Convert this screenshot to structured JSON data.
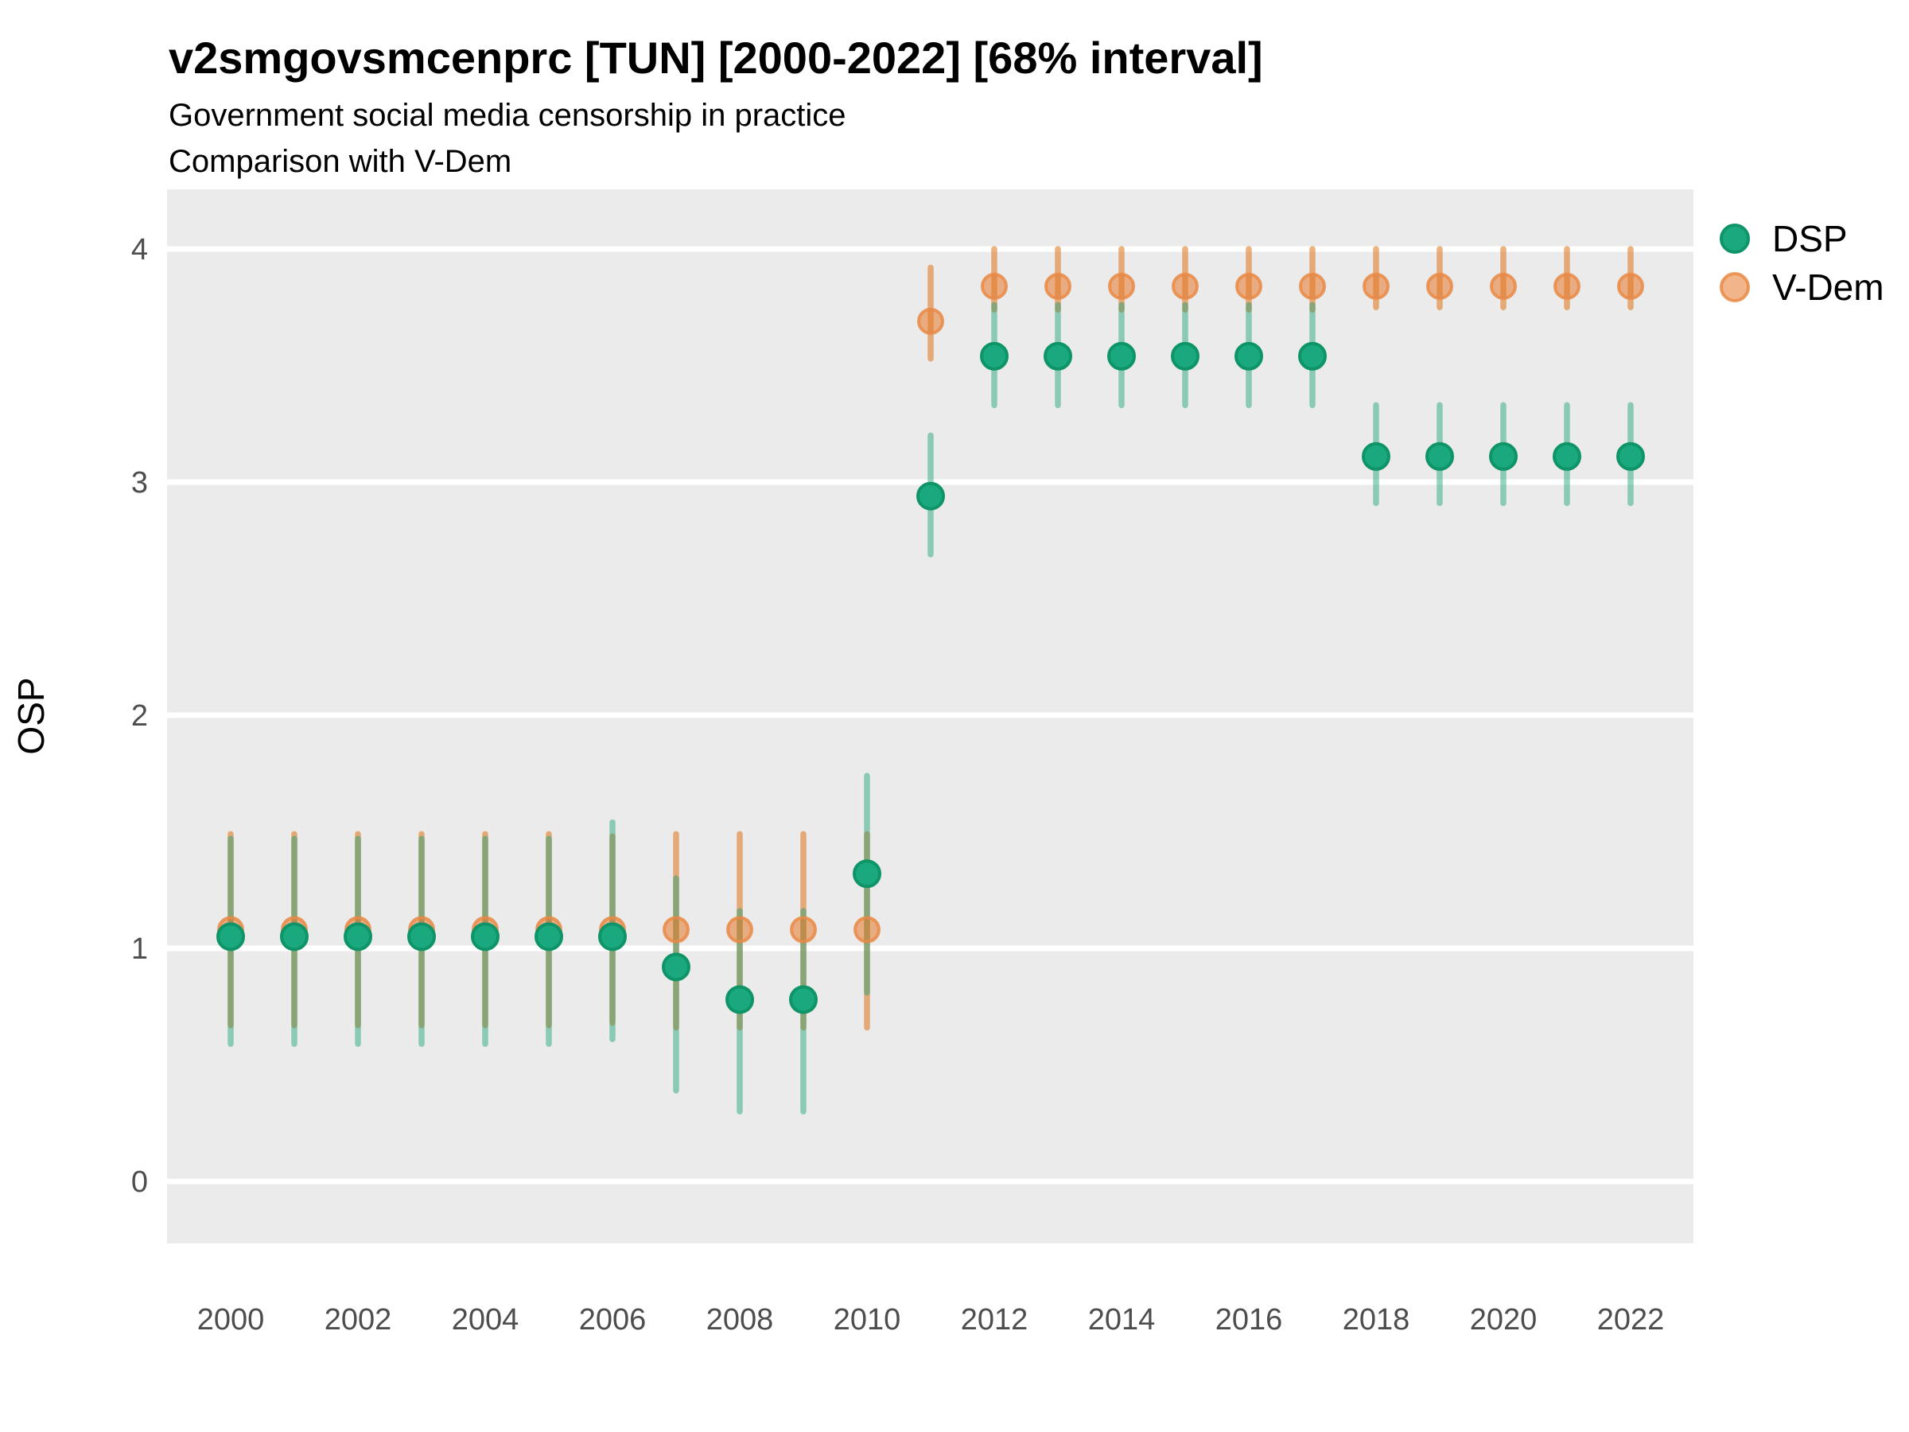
{
  "title": "v2smgovsmcenprc [TUN] [2000-2022] [68% interval]",
  "subtitle_line1": "Government social media censorship in practice",
  "subtitle_line2": "Comparison with V-Dem",
  "y_axis_label": "OSP",
  "legend": {
    "items": [
      {
        "label": "DSP",
        "swatch": "green-dot"
      },
      {
        "label": "V-Dem",
        "swatch": "orange-dot"
      }
    ]
  },
  "colors": {
    "panel_background": "#EBEBEB",
    "gridline": "#FFFFFF",
    "dsp_point_fill": "#1AA87F",
    "dsp_point_stroke": "#0F9468",
    "vdem_point_fill": "rgba(230,120,40,0.55)",
    "vdem_point_stroke": "rgba(233,138,70,0.85)",
    "dsp_interval": "rgba(23,160,120,0.45)",
    "vdem_interval": "rgba(224,115,24,0.55)",
    "tick_label": "#4d4d4d"
  },
  "chart_data": {
    "type": "scatter",
    "title": "v2smgovsmcenprc [TUN] [2000-2022] [68% interval]",
    "subtitle": [
      "Government social media censorship in practice",
      "Comparison with V-Dem"
    ],
    "xlabel": "",
    "ylabel": "OSP",
    "interval_note": "68% interval",
    "grid": "on",
    "legend_position": "right",
    "x_ticks": [
      2000,
      2002,
      2004,
      2006,
      2008,
      2010,
      2012,
      2014,
      2016,
      2018,
      2020,
      2022
    ],
    "y_ticks": [
      0,
      1,
      2,
      3,
      4
    ],
    "ylim": [
      -0.27,
      4.26
    ],
    "xlim": [
      1999,
      2023
    ],
    "series": [
      {
        "name": "DSP",
        "style": "point-with-interval",
        "x": [
          2000,
          2001,
          2002,
          2003,
          2004,
          2005,
          2006,
          2007,
          2008,
          2009,
          2010,
          2011,
          2012,
          2013,
          2014,
          2015,
          2016,
          2017,
          2018,
          2019,
          2020,
          2021,
          2022
        ],
        "y": [
          1.05,
          1.05,
          1.05,
          1.05,
          1.05,
          1.05,
          1.05,
          0.92,
          0.78,
          0.78,
          1.32,
          2.94,
          3.54,
          3.54,
          3.54,
          3.54,
          3.54,
          3.54,
          3.11,
          3.11,
          3.11,
          3.11,
          3.11
        ],
        "lo": [
          0.59,
          0.59,
          0.59,
          0.59,
          0.59,
          0.59,
          0.61,
          0.39,
          0.3,
          0.3,
          0.81,
          2.69,
          3.33,
          3.33,
          3.33,
          3.33,
          3.33,
          3.33,
          2.91,
          2.91,
          2.91,
          2.91,
          2.91
        ],
        "hi": [
          1.47,
          1.47,
          1.47,
          1.47,
          1.47,
          1.47,
          1.54,
          1.3,
          1.16,
          1.16,
          1.74,
          3.2,
          3.76,
          3.76,
          3.76,
          3.76,
          3.76,
          3.76,
          3.33,
          3.33,
          3.33,
          3.33,
          3.33
        ]
      },
      {
        "name": "V-Dem",
        "style": "point-with-interval",
        "x": [
          2000,
          2001,
          2002,
          2003,
          2004,
          2005,
          2006,
          2007,
          2008,
          2009,
          2010,
          2011,
          2012,
          2013,
          2014,
          2015,
          2016,
          2017,
          2018,
          2019,
          2020,
          2021,
          2022
        ],
        "y": [
          1.08,
          1.08,
          1.08,
          1.08,
          1.08,
          1.08,
          1.08,
          1.08,
          1.08,
          1.08,
          1.08,
          3.69,
          3.84,
          3.84,
          3.84,
          3.84,
          3.84,
          3.84,
          3.84,
          3.84,
          3.84,
          3.84,
          3.84
        ],
        "lo": [
          0.67,
          0.67,
          0.67,
          0.67,
          0.67,
          0.67,
          0.68,
          0.66,
          0.66,
          0.66,
          0.66,
          3.53,
          3.74,
          3.74,
          3.74,
          3.74,
          3.74,
          3.74,
          3.75,
          3.75,
          3.75,
          3.75,
          3.75
        ],
        "hi": [
          1.49,
          1.49,
          1.49,
          1.49,
          1.49,
          1.49,
          1.48,
          1.49,
          1.49,
          1.49,
          1.49,
          3.92,
          4.0,
          4.0,
          4.0,
          4.0,
          4.0,
          4.0,
          4.0,
          4.0,
          4.0,
          4.0,
          4.0
        ]
      }
    ]
  }
}
